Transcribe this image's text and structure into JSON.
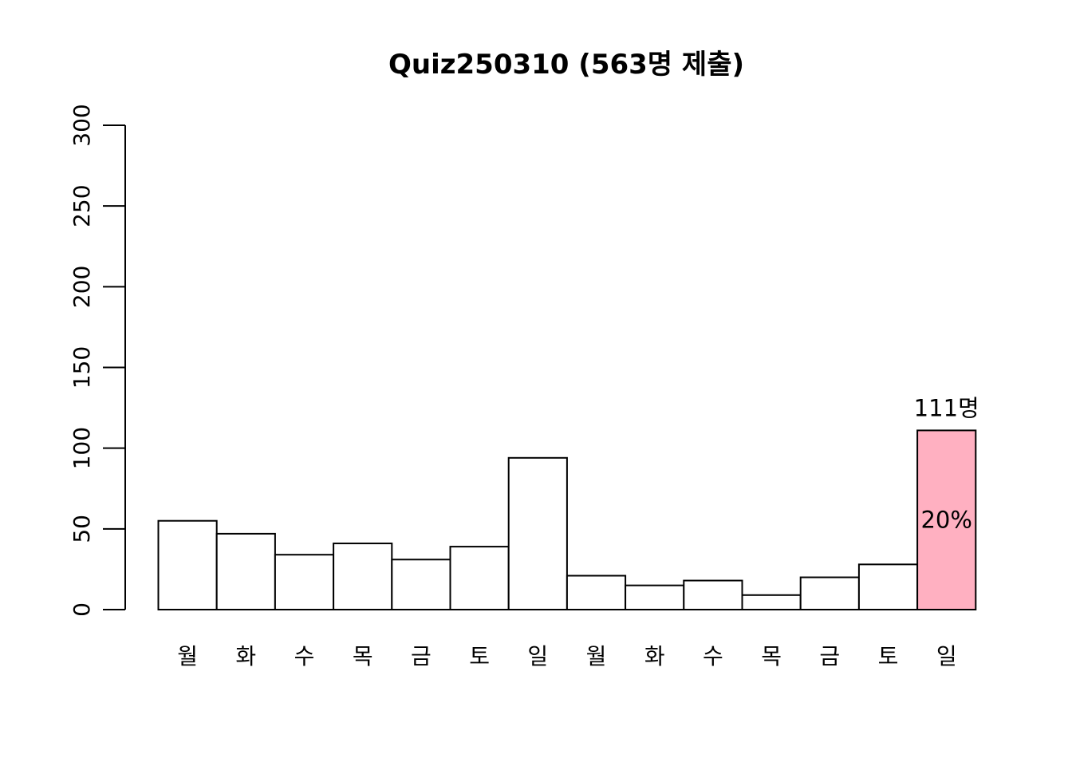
{
  "chart_data": {
    "type": "bar",
    "title": "Quiz250310 (563명 제출)",
    "xlabel": "",
    "ylabel": "",
    "categories": [
      "월",
      "화",
      "수",
      "목",
      "금",
      "토",
      "일",
      "월",
      "화",
      "수",
      "목",
      "금",
      "토",
      "일"
    ],
    "values": [
      55,
      47,
      34,
      41,
      31,
      39,
      94,
      21,
      15,
      18,
      9,
      20,
      28,
      111
    ],
    "ylim": [
      0,
      300
    ],
    "yticks": [
      "0",
      "50",
      "100",
      "150",
      "200",
      "250",
      "300"
    ],
    "grid": false,
    "highlight_index": 13,
    "highlight_color": "#FFB0C1",
    "bar_color": "#FFFFFF",
    "highlight_count_label": "111명",
    "highlight_percent_label": "20%"
  }
}
